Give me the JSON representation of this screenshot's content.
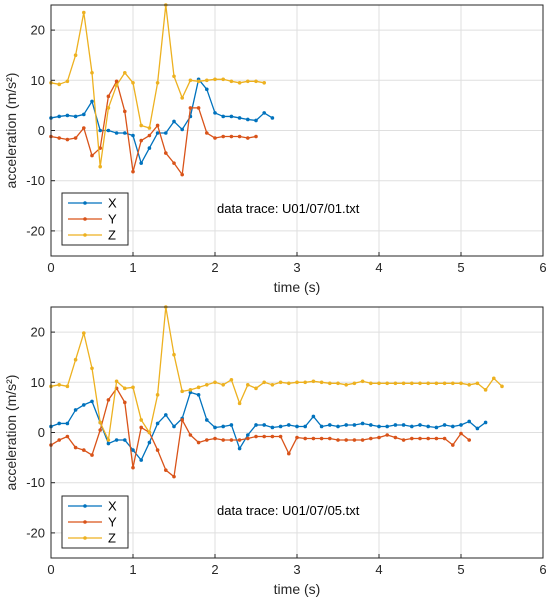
{
  "chart_data": [
    {
      "type": "line",
      "xlabel": "time (s)",
      "ylabel": "acceleration (m/s²)",
      "xlim": [
        0,
        6
      ],
      "ylim": [
        -25,
        25
      ],
      "xticks": [
        "0",
        "1",
        "2",
        "3",
        "4",
        "5",
        "6"
      ],
      "yticks": [
        "20",
        "10",
        "0",
        "-10",
        "-20"
      ],
      "grid": true,
      "legend": "bottom-left",
      "annotation": "data trace: U01/07/01.txt",
      "x": [
        0.0,
        0.1,
        0.2,
        0.3,
        0.4,
        0.5,
        0.6,
        0.7,
        0.8,
        0.9,
        1.0,
        1.1,
        1.2,
        1.3,
        1.4,
        1.5,
        1.6,
        1.7,
        1.8,
        1.9,
        2.0,
        2.1,
        2.2,
        2.3,
        2.4,
        2.5,
        2.6,
        2.7,
        2.8
      ],
      "series": [
        {
          "name": "X",
          "color": "#0072BD",
          "values": [
            2.5,
            2.8,
            3.0,
            2.8,
            3.2,
            5.8,
            0.0,
            0.0,
            -0.5,
            -0.5,
            -1.0,
            -6.5,
            -3.5,
            -0.5,
            -0.5,
            1.8,
            0.2,
            2.8,
            10.2,
            8.2,
            3.5,
            2.8,
            2.8,
            2.5,
            2.2,
            2.0,
            3.5,
            2.5,
            null
          ]
        },
        {
          "name": "Y",
          "color": "#D95319",
          "values": [
            -1.2,
            -1.5,
            -1.8,
            -1.5,
            0.5,
            -5.0,
            -3.5,
            6.8,
            9.8,
            3.8,
            -8.2,
            -2.0,
            -1.0,
            1.0,
            -4.5,
            -6.5,
            -8.8,
            4.5,
            4.5,
            -0.5,
            -1.5,
            -1.2,
            -1.2,
            -1.2,
            -1.5,
            -1.2,
            null,
            null,
            null
          ]
        },
        {
          "name": "Z",
          "color": "#EDB120",
          "values": [
            9.5,
            9.2,
            9.8,
            15.0,
            23.5,
            11.5,
            -7.2,
            4.5,
            9.0,
            11.5,
            9.5,
            1.0,
            0.5,
            9.5,
            25.0,
            10.8,
            6.5,
            10.0,
            9.8,
            10.0,
            10.2,
            10.2,
            9.8,
            9.5,
            9.8,
            9.8,
            9.5,
            null,
            null
          ]
        }
      ]
    },
    {
      "type": "line",
      "xlabel": "time (s)",
      "ylabel": "acceleration (m/s²)",
      "xlim": [
        0,
        6
      ],
      "ylim": [
        -25,
        25
      ],
      "xticks": [
        "0",
        "1",
        "2",
        "3",
        "4",
        "5",
        "6"
      ],
      "yticks": [
        "20",
        "10",
        "0",
        "-10",
        "-20"
      ],
      "grid": true,
      "legend": "bottom-left",
      "annotation": "data trace: U01/07/05.txt",
      "x": [
        0.0,
        0.1,
        0.2,
        0.3,
        0.4,
        0.5,
        0.6,
        0.7,
        0.8,
        0.9,
        1.0,
        1.1,
        1.2,
        1.3,
        1.4,
        1.5,
        1.6,
        1.7,
        1.8,
        1.9,
        2.0,
        2.1,
        2.2,
        2.3,
        2.4,
        2.5,
        2.6,
        2.7,
        2.8,
        2.9,
        3.0,
        3.1,
        3.2,
        3.3,
        3.4,
        3.5,
        3.6,
        3.7,
        3.8,
        3.9,
        4.0,
        4.1,
        4.2,
        4.3,
        4.4,
        4.5,
        4.6,
        4.7,
        4.8,
        4.9,
        5.0,
        5.1,
        5.2,
        5.3,
        5.4,
        5.5
      ],
      "series": [
        {
          "name": "X",
          "color": "#0072BD",
          "values": [
            1.2,
            1.8,
            1.8,
            4.5,
            5.5,
            6.2,
            2.0,
            -2.2,
            -1.5,
            -1.5,
            -3.5,
            -5.5,
            -2.0,
            1.8,
            3.5,
            1.2,
            2.8,
            8.0,
            7.5,
            2.5,
            1.0,
            1.2,
            1.5,
            -3.2,
            -0.5,
            1.5,
            1.5,
            1.0,
            1.2,
            1.5,
            1.2,
            1.2,
            3.2,
            1.2,
            1.5,
            1.2,
            1.5,
            1.5,
            1.8,
            1.5,
            1.2,
            1.2,
            1.5,
            1.5,
            1.2,
            1.5,
            1.2,
            1.0,
            1.5,
            1.2,
            1.5,
            2.2,
            0.8,
            2.0,
            null,
            null
          ]
        },
        {
          "name": "Y",
          "color": "#D95319",
          "values": [
            -2.5,
            -1.5,
            -0.8,
            -3.0,
            -3.5,
            -4.5,
            0.5,
            6.5,
            8.8,
            6.0,
            -7.0,
            1.0,
            0.0,
            -3.5,
            -7.5,
            -8.8,
            2.5,
            -0.5,
            -2.0,
            -1.5,
            -1.2,
            -1.5,
            -1.5,
            -1.5,
            -1.2,
            -0.8,
            -0.8,
            -0.8,
            -0.8,
            -4.2,
            -1.0,
            -1.2,
            -1.2,
            -1.2,
            -1.2,
            -1.5,
            -1.5,
            -1.5,
            -1.5,
            -1.2,
            -1.0,
            -0.5,
            -1.0,
            -1.5,
            -1.2,
            -1.2,
            -1.2,
            -1.2,
            -1.2,
            -2.5,
            -0.2,
            -1.5,
            null,
            null,
            null,
            null
          ]
        },
        {
          "name": "Z",
          "color": "#EDB120",
          "values": [
            9.2,
            9.5,
            9.2,
            14.5,
            19.8,
            12.8,
            2.0,
            -1.5,
            10.2,
            8.8,
            9.0,
            2.5,
            0.0,
            7.5,
            25.0,
            15.5,
            8.2,
            8.5,
            9.0,
            9.5,
            10.0,
            9.5,
            10.5,
            5.8,
            9.5,
            8.8,
            10.0,
            9.5,
            10.0,
            9.8,
            10.0,
            10.0,
            10.2,
            10.0,
            9.8,
            9.8,
            9.5,
            9.8,
            10.2,
            9.8,
            9.8,
            9.8,
            9.8,
            9.8,
            9.8,
            9.8,
            9.8,
            9.8,
            9.8,
            9.8,
            9.8,
            9.5,
            9.8,
            8.5,
            10.8,
            9.2
          ]
        }
      ]
    }
  ]
}
